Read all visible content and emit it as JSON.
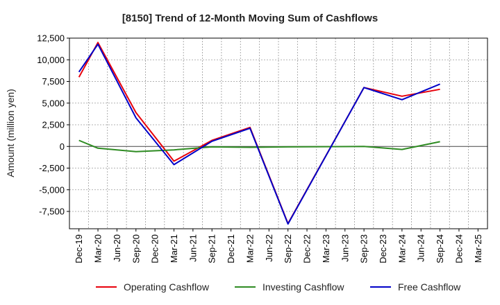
{
  "chart_data": {
    "type": "line",
    "title": "[8150]  Trend of 12-Month Moving Sum of Cashflows",
    "xlabel": "",
    "ylabel": "Amount (million yen)",
    "ylim": [
      -9500,
      12500
    ],
    "yticks": [
      12500,
      10000,
      7500,
      5000,
      2500,
      0,
      -2500,
      -5000,
      -7500
    ],
    "ytick_labels": [
      "12,500",
      "10,000",
      "7,500",
      "5,000",
      "2,500",
      "0",
      "-2,500",
      "-5,000",
      "-7,500"
    ],
    "categories": [
      "Dec-19",
      "Mar-20",
      "Jun-20",
      "Sep-20",
      "Dec-20",
      "Mar-21",
      "Jun-21",
      "Sep-21",
      "Dec-21",
      "Mar-22",
      "Jun-22",
      "Sep-22",
      "Dec-22",
      "Mar-23",
      "Jun-23",
      "Sep-23",
      "Dec-23",
      "Mar-24",
      "Jun-24",
      "Sep-24",
      "Dec-24",
      "Mar-25"
    ],
    "grid": true,
    "legend_position": "bottom",
    "series": [
      {
        "name": "Operating Cashflow",
        "color": "#e8000b",
        "points": [
          [
            "Dec-19",
            8000
          ],
          [
            "Mar-20",
            12000
          ],
          [
            "Sep-20",
            3900
          ],
          [
            "Mar-21",
            -1700
          ],
          [
            "Sep-21",
            700
          ],
          [
            "Mar-22",
            2200
          ],
          [
            "Sep-22",
            -8900
          ],
          [
            "Sep-23",
            6800
          ],
          [
            "Mar-24",
            5800
          ],
          [
            "Sep-24",
            6600
          ]
        ]
      },
      {
        "name": "Investing Cashflow",
        "color": "#2e8b22",
        "points": [
          [
            "Dec-19",
            700
          ],
          [
            "Mar-20",
            -200
          ],
          [
            "Sep-20",
            -600
          ],
          [
            "Mar-21",
            -400
          ],
          [
            "Sep-21",
            -50
          ],
          [
            "Mar-22",
            -100
          ],
          [
            "Sep-22",
            -50
          ],
          [
            "Sep-23",
            0
          ],
          [
            "Mar-24",
            -350
          ],
          [
            "Sep-24",
            550
          ]
        ]
      },
      {
        "name": "Free Cashflow",
        "color": "#0000c8",
        "points": [
          [
            "Dec-19",
            8600
          ],
          [
            "Mar-20",
            11800
          ],
          [
            "Sep-20",
            3300
          ],
          [
            "Mar-21",
            -2100
          ],
          [
            "Sep-21",
            600
          ],
          [
            "Mar-22",
            2100
          ],
          [
            "Sep-22",
            -8950
          ],
          [
            "Sep-23",
            6800
          ],
          [
            "Mar-24",
            5400
          ],
          [
            "Sep-24",
            7200
          ]
        ]
      }
    ]
  }
}
